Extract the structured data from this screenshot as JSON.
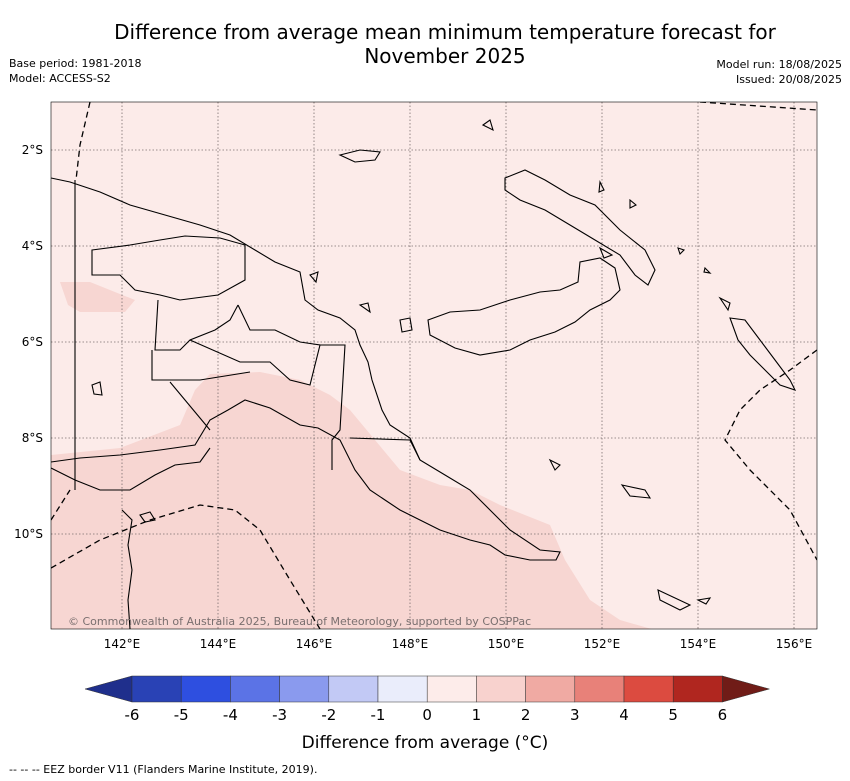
{
  "title": "Difference from average mean minimum temperature forecast for November 2025",
  "base_period": "Base period: 1981-2018",
  "model": "Model: ACCESS-S2",
  "model_run": "Model run: 18/08/2025",
  "issued": "Issued: 20/08/2025",
  "copyright": "© Commonwealth of Australia 2025, Bureau of Meteorology, supported by COSPPac",
  "lat_labels": [
    "2°S",
    "4°S",
    "6°S",
    "8°S",
    "10°S"
  ],
  "lon_labels": [
    "142°E",
    "144°E",
    "146°E",
    "148°E",
    "150°E",
    "152°E",
    "154°E",
    "156°E"
  ],
  "legend": {
    "title": "Difference from average (°C)",
    "ticks": [
      "-6",
      "-5",
      "-4",
      "-3",
      "-2",
      "-1",
      "0",
      "1",
      "2",
      "3",
      "4",
      "5",
      "6"
    ],
    "colors": [
      "#1f2f8c",
      "#2942b5",
      "#2e4fe0",
      "#5b73e6",
      "#8a9aee",
      "#c2c9f5",
      "#eaedfb",
      "#fdecea",
      "#f8d2ce",
      "#f0aaa3",
      "#e88179",
      "#dc4b40",
      "#b0261f",
      "#701c17"
    ]
  },
  "footnote": "-- -- -- EEZ border V11 (Flanders Marine Institute, 2019).",
  "map_colors": {
    "base_anomaly": "#fcebe9",
    "warm_anomaly": "#f7d6d2",
    "coast": "#000000",
    "grid": "#7a6f6f"
  }
}
